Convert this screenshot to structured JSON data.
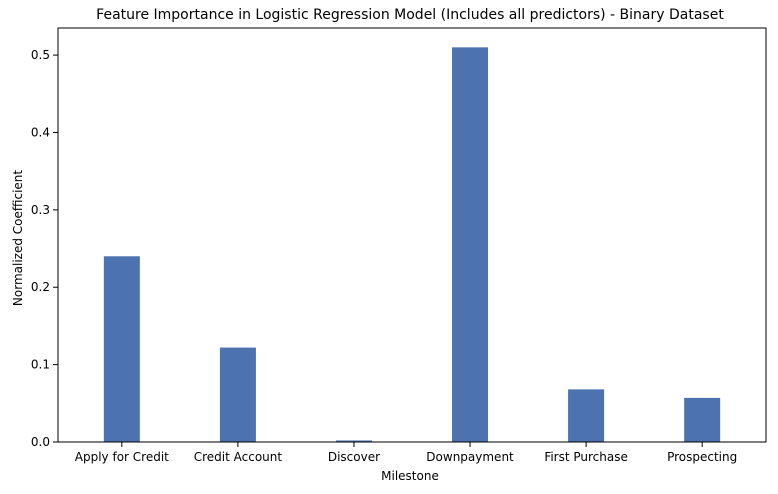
{
  "chart_data": {
    "type": "bar",
    "title": "Feature Importance in Logistic Regression Model (Includes all predictors)  - Binary Dataset",
    "xlabel": "Milestone",
    "ylabel": "Normalized Coefficient",
    "categories": [
      "Apply for Credit",
      "Credit Account",
      "Discover",
      "Downpayment",
      "First Purchase",
      "Prospecting"
    ],
    "values": [
      0.24,
      0.122,
      0.002,
      0.51,
      0.068,
      0.057
    ],
    "ylim": [
      0,
      0.535
    ],
    "yticks": [
      0.0,
      0.1,
      0.2,
      0.3,
      0.4,
      0.5
    ],
    "ytick_labels": [
      "0.0",
      "0.1",
      "0.2",
      "0.3",
      "0.4",
      "0.5"
    ],
    "bar_color": "#4c72b0",
    "grid": false,
    "legend": "none"
  }
}
